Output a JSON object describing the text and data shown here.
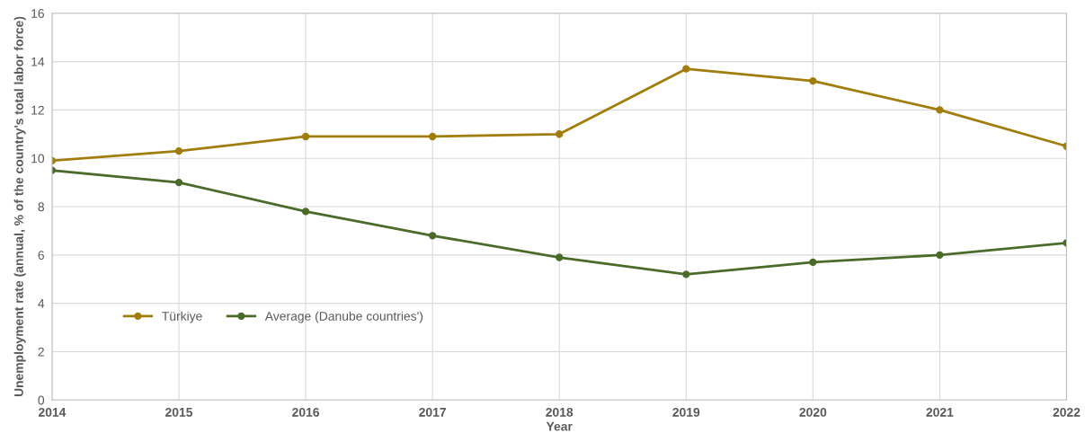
{
  "chart_data": {
    "type": "line",
    "xlabel": "Year",
    "ylabel": "Unemployment rate (annual, % of the country's total labor force)",
    "x": [
      2014,
      2015,
      2016,
      2017,
      2018,
      2019,
      2020,
      2021,
      2022
    ],
    "series": [
      {
        "name": "Türkiye",
        "color": "#a07d0c",
        "values": [
          9.9,
          10.3,
          10.9,
          10.9,
          11.0,
          13.7,
          13.2,
          12.0,
          10.5
        ]
      },
      {
        "name": "Average (Danube countries')",
        "color": "#4b6b2b",
        "values": [
          9.5,
          9.0,
          7.8,
          6.8,
          5.9,
          5.2,
          5.7,
          6.0,
          6.5
        ]
      }
    ],
    "xlim": [
      2014,
      2022
    ],
    "xticks": [
      2014,
      2015,
      2016,
      2017,
      2018,
      2019,
      2020,
      2021,
      2022
    ],
    "ylim": [
      0,
      16
    ],
    "yticks": [
      0,
      2,
      4,
      6,
      8,
      10,
      12,
      14,
      16
    ],
    "grid": true,
    "legend": "bottom left",
    "marker": "circle",
    "line_style": "solid"
  }
}
